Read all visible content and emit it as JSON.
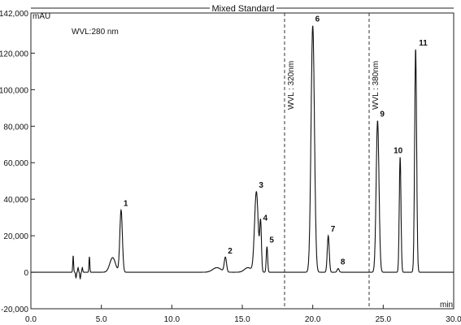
{
  "chart_data": {
    "type": "line",
    "title": "Mixed Standard",
    "y_unit_label": "mAU",
    "x_unit_label": "min",
    "annotation": "WVL:280 nm",
    "wavelength_markers": [
      {
        "x": 18.0,
        "label": "WVL : 320nm"
      },
      {
        "x": 24.0,
        "label": "WVL : 380nm"
      }
    ],
    "x_ticks": [
      {
        "value": 0,
        "label": "0.0"
      },
      {
        "value": 5,
        "label": "5.0"
      },
      {
        "value": 10,
        "label": "10.0"
      },
      {
        "value": 15,
        "label": "15.0"
      },
      {
        "value": 20,
        "label": "20.0"
      },
      {
        "value": 25,
        "label": "25.0"
      },
      {
        "value": 30,
        "label": "30.0"
      }
    ],
    "y_ticks": [
      {
        "value": -20000,
        "label": "-20,000"
      },
      {
        "value": 0,
        "label": "0"
      },
      {
        "value": 20000,
        "label": "20,000"
      },
      {
        "value": 40000,
        "label": "40,000"
      },
      {
        "value": 60000,
        "label": "60,000"
      },
      {
        "value": 80000,
        "label": "80,000"
      },
      {
        "value": 100000,
        "label": "100,000"
      },
      {
        "value": 120000,
        "label": "120,000"
      },
      {
        "value": 142000,
        "label": "142,000"
      }
    ],
    "xlim": [
      0,
      30
    ],
    "ylim": [
      -20000,
      142000
    ],
    "grid": false,
    "peaks": [
      {
        "label": "1",
        "rt": 6.4,
        "height": 34000,
        "width": 0.09
      },
      {
        "label": "2",
        "rt": 13.8,
        "height": 8000,
        "width": 0.08
      },
      {
        "label": "3",
        "rt": 16.0,
        "height": 44000,
        "width": 0.13
      },
      {
        "label": "4",
        "rt": 16.3,
        "height": 26000,
        "width": 0.06
      },
      {
        "label": "5",
        "rt": 16.75,
        "height": 14000,
        "width": 0.05
      },
      {
        "label": "6",
        "rt": 20.0,
        "height": 135000,
        "width": 0.12
      },
      {
        "label": "7",
        "rt": 21.1,
        "height": 20000,
        "width": 0.07
      },
      {
        "label": "8",
        "rt": 21.8,
        "height": 2000,
        "width": 0.07
      },
      {
        "label": "9",
        "rt": 24.6,
        "height": 83000,
        "width": 0.1
      },
      {
        "label": "10",
        "rt": 26.2,
        "height": 63000,
        "width": 0.06
      },
      {
        "label": "11",
        "rt": 27.3,
        "height": 122000,
        "width": 0.07
      }
    ],
    "minor_features": [
      {
        "rt": 3.0,
        "height": 9000,
        "width": 0.03
      },
      {
        "rt": 3.2,
        "height": -3000,
        "width": 0.03
      },
      {
        "rt": 3.35,
        "height": 2500,
        "width": 0.03
      },
      {
        "rt": 3.5,
        "height": -3500,
        "width": 0.03
      },
      {
        "rt": 3.65,
        "height": 2500,
        "width": 0.03
      },
      {
        "rt": 4.15,
        "height": 8500,
        "width": 0.03
      },
      {
        "rt": 5.8,
        "height": 8000,
        "width": 0.2
      },
      {
        "rt": 13.2,
        "height": 2500,
        "width": 0.3
      },
      {
        "rt": 15.4,
        "height": 2500,
        "width": 0.25
      }
    ]
  }
}
